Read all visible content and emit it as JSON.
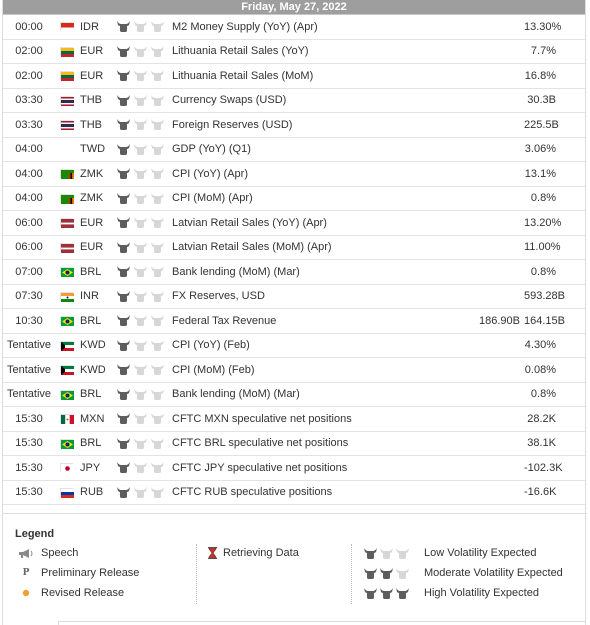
{
  "header": {
    "date": "Friday, May 27, 2022"
  },
  "colors": {
    "header_bg": "#9e9e9e",
    "bull_active": "#5d5d5d",
    "bull_inactive": "#d7d7d7"
  },
  "events": [
    {
      "time": "00:00",
      "flag": "flag-indonesia",
      "currency": "IDR",
      "volatility": 1,
      "event": "M2 Money Supply (YoY) (Apr)",
      "actual": "",
      "forecast": "",
      "previous": "13.30%"
    },
    {
      "time": "02:00",
      "flag": "flag-lithuania",
      "currency": "EUR",
      "volatility": 1,
      "event": "Lithuania Retail Sales (YoY)",
      "actual": "",
      "forecast": "",
      "previous": "7.7%"
    },
    {
      "time": "02:00",
      "flag": "flag-lithuania",
      "currency": "EUR",
      "volatility": 1,
      "event": "Lithuania Retail Sales (MoM)",
      "actual": "",
      "forecast": "",
      "previous": "16.8%"
    },
    {
      "time": "03:30",
      "flag": "flag-thailand",
      "currency": "THB",
      "volatility": 1,
      "event": "Currency Swaps (USD)",
      "actual": "",
      "forecast": "",
      "previous": "30.3B"
    },
    {
      "time": "03:30",
      "flag": "flag-thailand",
      "currency": "THB",
      "volatility": 1,
      "event": "Foreign Reserves (USD)",
      "actual": "",
      "forecast": "",
      "previous": "225.5B"
    },
    {
      "time": "04:00",
      "flag": "flag-taiwan",
      "currency": "TWD",
      "volatility": 1,
      "event": "GDP (YoY) (Q1)",
      "actual": "",
      "forecast": "",
      "previous": "3.06%"
    },
    {
      "time": "04:00",
      "flag": "flag-zambia",
      "currency": "ZMK",
      "volatility": 1,
      "event": "CPI (YoY) (Apr)",
      "actual": "",
      "forecast": "",
      "previous": "13.1%"
    },
    {
      "time": "04:00",
      "flag": "flag-zambia",
      "currency": "ZMK",
      "volatility": 1,
      "event": "CPI (MoM) (Apr)",
      "actual": "",
      "forecast": "",
      "previous": "0.8%"
    },
    {
      "time": "06:00",
      "flag": "flag-latvia",
      "currency": "EUR",
      "volatility": 1,
      "event": "Latvian Retail Sales (YoY) (Apr)",
      "actual": "",
      "forecast": "",
      "previous": "13.20%"
    },
    {
      "time": "06:00",
      "flag": "flag-latvia",
      "currency": "EUR",
      "volatility": 1,
      "event": "Latvian Retail Sales (MoM) (Apr)",
      "actual": "",
      "forecast": "",
      "previous": "11.00%"
    },
    {
      "time": "07:00",
      "flag": "flag-brazil",
      "currency": "BRL",
      "volatility": 1,
      "event": "Bank lending (MoM) (Mar)",
      "actual": "",
      "forecast": "",
      "previous": "0.8%"
    },
    {
      "time": "07:30",
      "flag": "flag-india",
      "currency": "INR",
      "volatility": 1,
      "event": "FX Reserves, USD",
      "actual": "",
      "forecast": "",
      "previous": "593.28B"
    },
    {
      "time": "10:30",
      "flag": "flag-brazil",
      "currency": "BRL",
      "volatility": 1,
      "event": "Federal Tax Revenue",
      "actual": "",
      "forecast": "186.90B",
      "previous": "164.15B"
    },
    {
      "time": "Tentative",
      "flag": "flag-kuwait",
      "currency": "KWD",
      "volatility": 1,
      "event": "CPI (YoY) (Feb)",
      "actual": "",
      "forecast": "",
      "previous": "4.30%"
    },
    {
      "time": "Tentative",
      "flag": "flag-kuwait",
      "currency": "KWD",
      "volatility": 1,
      "event": "CPI (MoM) (Feb)",
      "actual": "",
      "forecast": "",
      "previous": "0.08%"
    },
    {
      "time": "Tentative",
      "flag": "flag-brazil",
      "currency": "BRL",
      "volatility": 1,
      "event": "Bank lending (MoM) (Mar)",
      "actual": "",
      "forecast": "",
      "previous": "0.8%"
    },
    {
      "time": "15:30",
      "flag": "flag-mexico",
      "currency": "MXN",
      "volatility": 1,
      "event": "CFTC MXN speculative net positions",
      "actual": "",
      "forecast": "",
      "previous": "28.2K"
    },
    {
      "time": "15:30",
      "flag": "flag-brazil",
      "currency": "BRL",
      "volatility": 1,
      "event": "CFTC BRL speculative net positions",
      "actual": "",
      "forecast": "",
      "previous": "38.1K"
    },
    {
      "time": "15:30",
      "flag": "flag-japan",
      "currency": "JPY",
      "volatility": 1,
      "event": "CFTC JPY speculative net positions",
      "actual": "",
      "forecast": "",
      "previous": "-102.3K"
    },
    {
      "time": "15:30",
      "flag": "flag-russia",
      "currency": "RUB",
      "volatility": 1,
      "event": "CFTC RUB speculative positions",
      "actual": "",
      "forecast": "",
      "previous": "-16.6K"
    }
  ],
  "legend": {
    "title": "Legend",
    "speech": "Speech",
    "preliminary_icon": "P",
    "preliminary": "Preliminary Release",
    "revised": "Revised Release",
    "retrieving": "Retrieving Data",
    "low": "Low Volatility Expected",
    "moderate": "Moderate Volatility Expected",
    "high": "High Volatility Expected"
  }
}
